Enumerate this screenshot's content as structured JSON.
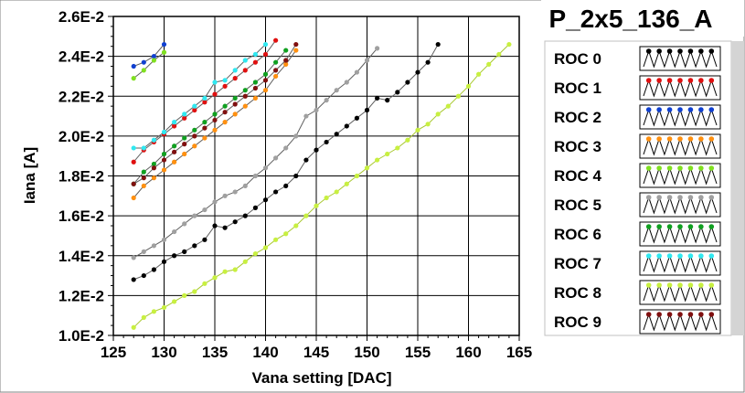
{
  "chart_data": {
    "type": "line",
    "title": "P_2x5_136_A",
    "xlabel": "Vana setting [DAC]",
    "ylabel": "Iana [A]",
    "xlim": [
      125,
      165
    ],
    "ylim": [
      0.01,
      0.026
    ],
    "xticks": [
      "125",
      "130",
      "135",
      "140",
      "145",
      "150",
      "155",
      "160",
      "165"
    ],
    "yticks": [
      "1.0E-2",
      "1.2E-2",
      "1.4E-2",
      "1.6E-2",
      "1.8E-2",
      "2.0E-2",
      "2.2E-2",
      "2.4E-2",
      "2.6E-2"
    ],
    "grid": true,
    "legend_position": "right",
    "series": [
      {
        "name": "ROC 0",
        "color": "#000000",
        "x": [
          127,
          128,
          129,
          130,
          131,
          132,
          133,
          134,
          135,
          136,
          137,
          138,
          139,
          140,
          141,
          142,
          143,
          144,
          145,
          146,
          147,
          148,
          149,
          150,
          151,
          152,
          153,
          154,
          155,
          156,
          157
        ],
        "y": [
          0.0128,
          0.013,
          0.0133,
          0.0137,
          0.014,
          0.0142,
          0.0145,
          0.0148,
          0.0155,
          0.0154,
          0.0157,
          0.016,
          0.0164,
          0.0168,
          0.0172,
          0.0175,
          0.018,
          0.0188,
          0.0193,
          0.0197,
          0.0201,
          0.0205,
          0.0209,
          0.0213,
          0.0219,
          0.0218,
          0.0222,
          0.0227,
          0.0232,
          0.0237,
          0.0246
        ]
      },
      {
        "name": "ROC 1",
        "color": "#e01010",
        "x": [
          127,
          128,
          129,
          130,
          131,
          132,
          133,
          134,
          135,
          136,
          137,
          138,
          139,
          140,
          141
        ],
        "y": [
          0.0187,
          0.0193,
          0.0197,
          0.0201,
          0.0205,
          0.0209,
          0.0213,
          0.0217,
          0.0221,
          0.0225,
          0.0229,
          0.0233,
          0.0237,
          0.0241,
          0.0248
        ]
      },
      {
        "name": "ROC 2",
        "color": "#1040d0",
        "x": [
          127,
          128,
          129,
          130
        ],
        "y": [
          0.0235,
          0.0237,
          0.024,
          0.0246
        ]
      },
      {
        "name": "ROC 3",
        "color": "#ff9010",
        "x": [
          127,
          128,
          129,
          130,
          131,
          132,
          133,
          134,
          135,
          136,
          137,
          138,
          139,
          140,
          141,
          142,
          143
        ],
        "y": [
          0.0169,
          0.0175,
          0.0179,
          0.0183,
          0.0187,
          0.0191,
          0.0195,
          0.0199,
          0.0203,
          0.0207,
          0.0211,
          0.0215,
          0.0219,
          0.0223,
          0.023,
          0.0236,
          0.0243
        ]
      },
      {
        "name": "ROC 4",
        "color": "#80e020",
        "x": [
          127,
          128,
          129,
          130
        ],
        "y": [
          0.0229,
          0.0233,
          0.0238,
          0.0242
        ]
      },
      {
        "name": "ROC 5",
        "color": "#a0a0a0",
        "x": [
          127,
          128,
          129,
          130,
          131,
          132,
          133,
          134,
          135,
          136,
          137,
          138,
          139,
          140,
          141,
          142,
          143,
          144,
          145,
          146,
          147,
          148,
          149,
          150,
          151
        ],
        "y": [
          0.0139,
          0.0142,
          0.0145,
          0.0148,
          0.0152,
          0.0156,
          0.016,
          0.0163,
          0.0167,
          0.017,
          0.0172,
          0.0175,
          0.018,
          0.0184,
          0.0189,
          0.0194,
          0.02,
          0.021,
          0.0213,
          0.0218,
          0.0223,
          0.0227,
          0.0232,
          0.0238,
          0.0244
        ]
      },
      {
        "name": "ROC 6",
        "color": "#10a020",
        "x": [
          127,
          128,
          129,
          130,
          131,
          132,
          133,
          134,
          135,
          136,
          137,
          138,
          139,
          140,
          141,
          142
        ],
        "y": [
          0.0176,
          0.0182,
          0.0186,
          0.0191,
          0.0195,
          0.0199,
          0.0203,
          0.0207,
          0.0211,
          0.0215,
          0.0219,
          0.0223,
          0.0227,
          0.0231,
          0.0237,
          0.0243
        ]
      },
      {
        "name": "ROC 7",
        "color": "#30e8f0",
        "x": [
          127,
          128,
          129,
          130,
          131,
          132,
          133,
          134,
          135,
          136,
          137,
          138,
          139,
          140
        ],
        "y": [
          0.0194,
          0.0194,
          0.0198,
          0.0202,
          0.0207,
          0.0211,
          0.0215,
          0.0219,
          0.0227,
          0.0228,
          0.0233,
          0.0238,
          0.0241,
          0.0246
        ]
      },
      {
        "name": "ROC 8",
        "color": "#c8f040",
        "x": [
          127,
          128,
          129,
          130,
          131,
          132,
          133,
          134,
          135,
          136,
          137,
          138,
          139,
          140,
          141,
          142,
          143,
          144,
          145,
          146,
          147,
          148,
          149,
          150,
          151,
          152,
          153,
          154,
          155,
          156,
          157,
          158,
          159,
          160,
          161,
          162,
          163,
          164
        ],
        "y": [
          0.0104,
          0.0109,
          0.0112,
          0.0114,
          0.0117,
          0.012,
          0.0122,
          0.0126,
          0.0129,
          0.0132,
          0.0133,
          0.0137,
          0.0141,
          0.0144,
          0.0148,
          0.0151,
          0.0155,
          0.016,
          0.0165,
          0.0169,
          0.0172,
          0.0176,
          0.018,
          0.0184,
          0.0188,
          0.0191,
          0.0194,
          0.0198,
          0.0203,
          0.0206,
          0.0211,
          0.0215,
          0.022,
          0.0225,
          0.0231,
          0.0236,
          0.0241,
          0.0246
        ]
      },
      {
        "name": "ROC 9",
        "color": "#801010",
        "x": [
          127,
          128,
          129,
          130,
          131,
          132,
          133,
          134,
          135,
          136,
          137,
          138,
          139,
          140,
          141,
          142,
          143
        ],
        "y": [
          0.0176,
          0.0179,
          0.0184,
          0.0188,
          0.0192,
          0.0196,
          0.02,
          0.0204,
          0.0208,
          0.0212,
          0.0216,
          0.022,
          0.0224,
          0.0228,
          0.0233,
          0.0238,
          0.0246
        ]
      }
    ]
  }
}
